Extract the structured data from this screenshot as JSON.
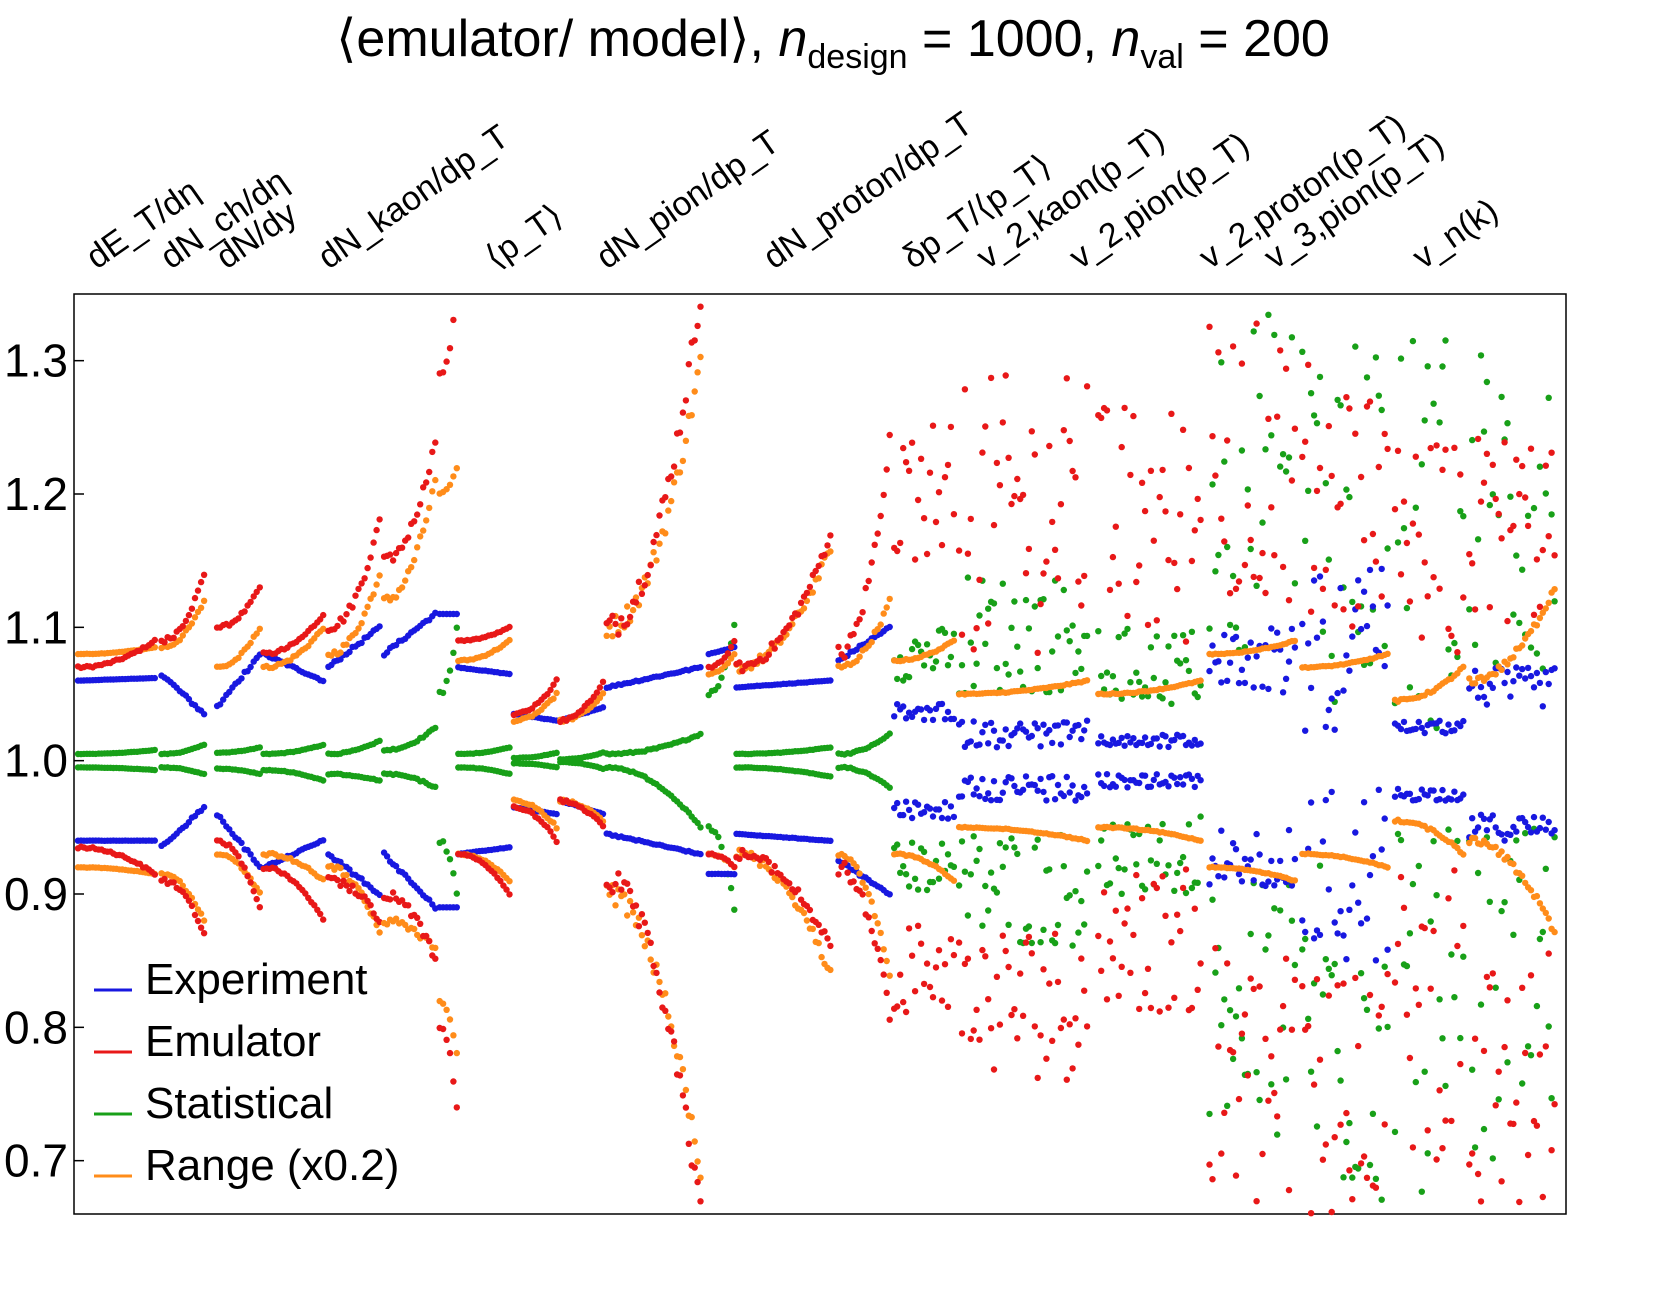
{
  "chart_data": {
    "type": "scatter",
    "title": {
      "prefix": "⟨emulator/ model⟩, ",
      "n1": "n",
      "n1_sub": "design",
      "n1_val": " = 1000, ",
      "n2": "n",
      "n2_sub": "val",
      "n2_val": " = 200"
    },
    "ylim": [
      0.66,
      1.35
    ],
    "yticks": [
      0.7,
      0.8,
      0.9,
      1.0,
      1.1,
      1.2,
      1.3
    ],
    "ytick_labels": [
      "0.7",
      "0.8",
      "0.9",
      "1.0",
      "1.1",
      "1.2",
      "1.3"
    ],
    "x_range": [
      0,
      160
    ],
    "group_labels": [
      {
        "text": "dE_T/dη",
        "x": 2
      },
      {
        "text": "dN_ch/dη",
        "x": 10
      },
      {
        "text": "dN/dy",
        "x": 16
      },
      {
        "text": "dN_kaon/dp_T",
        "x": 27
      },
      {
        "text": "⟨p_T⟩",
        "x": 45
      },
      {
        "text": "dN_pion/dp_T",
        "x": 57
      },
      {
        "text": "dN_proton/dp_T",
        "x": 75
      },
      {
        "text": "δp_T/⟨p_T⟩",
        "x": 90
      },
      {
        "text": "v_2,kaon(p_T)",
        "x": 98
      },
      {
        "text": "v_2,pion(p_T)",
        "x": 108
      },
      {
        "text": "v_2,proton(p_T)",
        "x": 122
      },
      {
        "text": "v_3,pion(p_T)",
        "x": 129
      },
      {
        "text": "v_n(k)",
        "x": 145
      }
    ],
    "legend": {
      "position": "bottom-left",
      "entries": [
        {
          "label": "Experiment",
          "color": "#1818e0"
        },
        {
          "label": "Emulator",
          "color": "#e81818"
        },
        {
          "label": "Statistical",
          "color": "#18a018"
        },
        {
          "label": "Range (x0.2)",
          "color": "#ff8c1a"
        }
      ]
    },
    "segments": [
      {
        "x0": 0,
        "x1": 9,
        "exp": [
          1.06,
          1.062,
          0.94,
          0.94
        ],
        "emu": [
          1.07,
          1.09,
          0.935,
          0.915
        ],
        "stat": [
          1.005,
          1.008,
          0.995,
          0.993
        ],
        "rng": [
          1.08,
          1.085,
          0.92,
          0.915
        ]
      },
      {
        "x0": 9,
        "x1": 14,
        "exp": [
          1.065,
          1.035,
          0.935,
          0.965
        ],
        "emu": [
          1.09,
          1.14,
          0.91,
          0.87
        ],
        "stat": [
          1.005,
          1.012,
          0.995,
          0.99
        ],
        "rng": [
          1.085,
          1.12,
          0.915,
          0.88
        ]
      },
      {
        "x0": 15,
        "x1": 20,
        "exp": [
          1.04,
          1.08,
          0.96,
          0.92
        ],
        "emu": [
          1.1,
          1.13,
          0.94,
          0.89
        ],
        "stat": [
          1.006,
          1.01,
          0.994,
          0.99
        ],
        "rng": [
          1.07,
          1.1,
          0.93,
          0.9
        ]
      },
      {
        "x0": 20,
        "x1": 27,
        "exp": [
          1.08,
          1.06,
          0.92,
          0.94
        ],
        "emu": [
          1.08,
          1.11,
          0.92,
          0.88
        ],
        "stat": [
          1.005,
          1.012,
          0.993,
          0.985
        ],
        "rng": [
          1.07,
          1.1,
          0.93,
          0.91
        ]
      },
      {
        "x0": 27,
        "x1": 33,
        "exp": [
          1.07,
          1.1,
          0.93,
          0.9
        ],
        "emu": [
          1.1,
          1.18,
          0.91,
          0.88
        ],
        "stat": [
          1.005,
          1.015,
          0.99,
          0.985
        ],
        "rng": [
          1.08,
          1.14,
          0.92,
          0.87
        ]
      },
      {
        "x0": 33,
        "x1": 39,
        "exp": [
          1.08,
          1.11,
          0.93,
          0.89
        ],
        "emu": [
          1.15,
          1.24,
          0.9,
          0.85
        ],
        "stat": [
          1.008,
          1.025,
          0.99,
          0.98
        ],
        "rng": [
          1.12,
          1.21,
          0.88,
          0.86
        ]
      },
      {
        "x0": 39,
        "x1": 41,
        "exp": [
          1.11,
          1.11,
          0.89,
          0.89
        ],
        "emu": [
          1.29,
          1.35,
          0.8,
          0.74
        ],
        "stat": [
          1.05,
          1.1,
          0.94,
          0.9
        ],
        "rng": [
          1.2,
          1.22,
          0.82,
          0.78
        ]
      },
      {
        "x0": 41,
        "x1": 47,
        "exp": [
          1.07,
          1.065,
          0.93,
          0.935
        ],
        "emu": [
          1.09,
          1.1,
          0.93,
          0.9
        ],
        "stat": [
          1.005,
          1.01,
          0.995,
          0.99
        ],
        "rng": [
          1.075,
          1.09,
          0.93,
          0.91
        ]
      },
      {
        "x0": 47,
        "x1": 52,
        "exp": [
          1.035,
          1.03,
          0.965,
          0.96
        ],
        "emu": [
          1.035,
          1.06,
          0.965,
          0.94
        ],
        "stat": [
          1.002,
          1.006,
          0.998,
          0.995
        ],
        "rng": [
          1.03,
          1.05,
          0.97,
          0.95
        ]
      },
      {
        "x0": 52,
        "x1": 57,
        "exp": [
          1.03,
          1.04,
          0.97,
          0.96
        ],
        "emu": [
          1.03,
          1.06,
          0.97,
          0.95
        ],
        "stat": [
          1.001,
          1.006,
          0.999,
          0.994
        ],
        "rng": [
          1.03,
          1.05,
          0.97,
          0.955
        ]
      },
      {
        "x0": 57,
        "x1": 68,
        "exp": [
          1.055,
          1.07,
          0.945,
          0.93
        ],
        "emu": [
          1.1,
          1.35,
          0.91,
          0.66
        ],
        "stat": [
          1.005,
          1.02,
          0.995,
          0.95
        ],
        "rng": [
          1.1,
          1.3,
          0.9,
          0.69
        ]
      },
      {
        "x0": 68,
        "x1": 71,
        "exp": [
          1.08,
          1.085,
          0.915,
          0.915
        ],
        "emu": [
          1.07,
          1.09,
          0.93,
          0.92
        ],
        "stat": [
          1.05,
          1.1,
          0.95,
          0.89
        ],
        "rng": [
          1.065,
          1.08,
          0.93,
          0.92
        ]
      },
      {
        "x0": 71,
        "x1": 82,
        "exp": [
          1.055,
          1.06,
          0.945,
          0.94
        ],
        "emu": [
          1.07,
          1.17,
          0.93,
          0.86
        ],
        "stat": [
          1.005,
          1.01,
          0.995,
          0.988
        ],
        "rng": [
          1.07,
          1.16,
          0.93,
          0.84
        ]
      },
      {
        "x0": 82,
        "x1": 88,
        "exp": [
          1.075,
          1.1,
          0.925,
          0.9
        ],
        "emu": [
          1.08,
          1.24,
          0.92,
          0.81
        ],
        "stat": [
          1.005,
          1.02,
          0.995,
          0.98
        ],
        "rng": [
          1.07,
          1.12,
          0.93,
          0.84
        ]
      },
      {
        "x0": 88,
        "x1": 95,
        "exp": [
          1.045,
          1.03,
          0.955,
          0.97
        ],
        "emu": [
          1.15,
          1.26,
          0.88,
          0.81
        ],
        "stat": [
          1.06,
          1.1,
          0.94,
          0.9
        ],
        "rng": [
          1.075,
          1.09,
          0.93,
          0.91
        ]
      },
      {
        "x0": 95,
        "x1": 110,
        "exp": [
          1.03,
          1.01,
          0.97,
          0.99
        ],
        "emu": [
          1.08,
          1.29,
          0.88,
          0.76
        ],
        "stat": [
          1.05,
          1.14,
          0.95,
          0.86
        ],
        "rng": [
          1.05,
          1.06,
          0.95,
          0.94
        ]
      },
      {
        "x0": 110,
        "x1": 122,
        "exp": [
          1.02,
          1.01,
          0.98,
          0.99
        ],
        "emu": [
          1.08,
          1.27,
          0.92,
          0.81
        ],
        "stat": [
          1.04,
          1.1,
          0.96,
          0.9
        ],
        "rng": [
          1.05,
          1.06,
          0.95,
          0.94
        ]
      },
      {
        "x0": 122,
        "x1": 132,
        "exp": [
          1.1,
          1.05,
          0.9,
          0.95
        ],
        "emu": [
          1.12,
          1.33,
          0.86,
          0.65
        ],
        "stat": [
          1.08,
          1.34,
          0.92,
          0.7
        ],
        "rng": [
          1.08,
          1.09,
          0.92,
          0.91
        ]
      },
      {
        "x0": 132,
        "x1": 142,
        "exp": [
          1.15,
          1.02,
          0.85,
          0.98
        ],
        "emu": [
          1.1,
          1.3,
          0.84,
          0.66
        ],
        "stat": [
          1.04,
          1.34,
          0.96,
          0.66
        ],
        "rng": [
          1.07,
          1.08,
          0.93,
          0.92
        ]
      },
      {
        "x0": 142,
        "x1": 150,
        "exp": [
          1.02,
          1.03,
          0.98,
          0.97
        ],
        "emu": [
          1.08,
          1.24,
          0.92,
          0.7
        ],
        "stat": [
          1.02,
          1.33,
          0.96,
          0.66
        ],
        "rng": [
          1.045,
          1.07,
          0.955,
          0.93
        ]
      },
      {
        "x0": 150,
        "x1": 160,
        "exp": [
          1.04,
          1.07,
          0.96,
          0.94
        ],
        "emu": [
          1.1,
          1.25,
          0.86,
          0.65
        ],
        "stat": [
          1.05,
          1.32,
          0.95,
          0.68
        ],
        "rng": [
          1.06,
          1.13,
          0.94,
          0.87
        ]
      }
    ]
  }
}
